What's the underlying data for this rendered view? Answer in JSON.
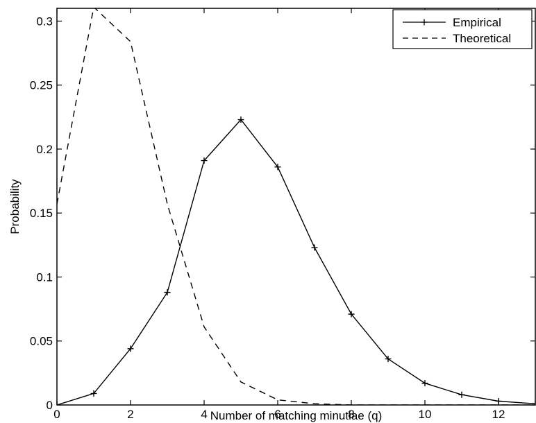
{
  "chart_data": {
    "type": "line",
    "title": "",
    "xlabel": "Number of matching minutiae (q)",
    "ylabel": "Probability",
    "xlim": [
      0,
      13
    ],
    "ylim": [
      0,
      0.31
    ],
    "xticks": [
      0,
      2,
      4,
      6,
      8,
      10,
      12
    ],
    "yticks": [
      0,
      0.05,
      0.1,
      0.15,
      0.2,
      0.25,
      0.3
    ],
    "xtick_labels": [
      "0",
      "2",
      "4",
      "6",
      "8",
      "10",
      "12"
    ],
    "ytick_labels": [
      "0",
      "0.05",
      "0.1",
      "0.15",
      "0.2",
      "0.25",
      "0.3"
    ],
    "grid": false,
    "legend_position": "top-right",
    "series": [
      {
        "name": "Empirical",
        "style": "solid-with-plus-markers",
        "color": "#000000",
        "x": [
          0,
          1,
          2,
          3,
          4,
          5,
          6,
          7,
          8,
          9,
          10,
          11,
          12,
          13
        ],
        "y": [
          0.0,
          0.009,
          0.044,
          0.088,
          0.191,
          0.223,
          0.186,
          0.123,
          0.071,
          0.036,
          0.017,
          0.008,
          0.003,
          0.001
        ]
      },
      {
        "name": "Theoretical",
        "style": "dashed",
        "color": "#000000",
        "x": [
          0,
          1,
          2,
          3,
          4,
          5,
          6,
          7,
          8,
          9,
          10,
          11,
          12,
          13
        ],
        "y": [
          0.157,
          0.311,
          0.284,
          0.157,
          0.061,
          0.018,
          0.004,
          0.001,
          0.0,
          0.0,
          0.0,
          0.0,
          0.0,
          0.0
        ]
      }
    ]
  }
}
